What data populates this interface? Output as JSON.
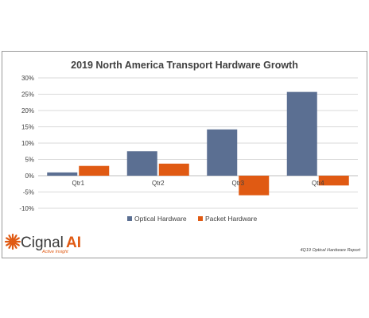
{
  "chart_data": {
    "type": "bar",
    "title": "2019 North America  Transport Hardware Growth",
    "categories": [
      "Qtr1",
      "Qtr2",
      "Qtr3",
      "Qtr4"
    ],
    "series": [
      {
        "name": "Optical Hardware",
        "values": [
          1,
          7.5,
          14.2,
          25.7
        ],
        "color": "#5b6f92"
      },
      {
        "name": "Packet Hardware",
        "values": [
          3,
          3.7,
          -6,
          -3
        ],
        "color": "#e05a13"
      }
    ],
    "ylim": [
      -10,
      30
    ],
    "yticks": [
      -10,
      -5,
      0,
      5,
      10,
      15,
      20,
      25,
      30
    ],
    "ytick_labels": [
      "-10%",
      "-5%",
      "0%",
      "5%",
      "10%",
      "15%",
      "20%",
      "25%",
      "30%"
    ],
    "grid": true,
    "legend": "bottom-center"
  },
  "branding": {
    "logo_name": "Cignal",
    "logo_suffix": "AI",
    "tagline": "Active Insight",
    "logo_icon": "sunburst-icon",
    "footnote": "4Q19 Optical Hardware Report"
  }
}
